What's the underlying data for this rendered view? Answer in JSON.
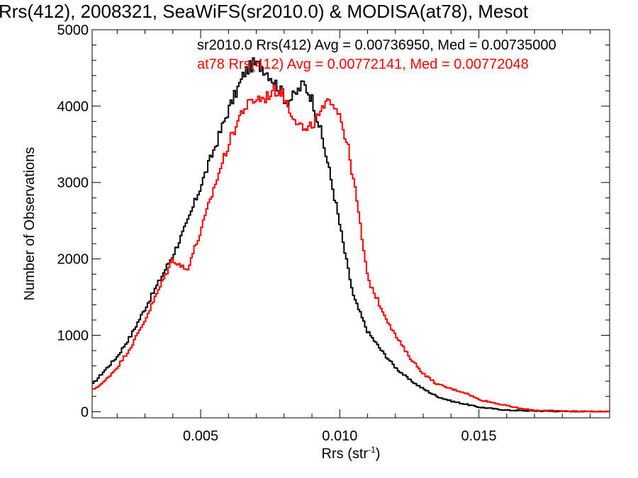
{
  "chart_data": {
    "type": "line",
    "title": "Rrs(412), 2008321, SeaWiFS(sr2010.0) & MODISA(at78), Mesot",
    "xlabel": "Rrs (str",
    "xlabel_sup": "-1",
    "xlabel_close": ")",
    "ylabel": "Number of Observations",
    "xlim": [
      0.0011,
      0.0197
    ],
    "ylim": [
      -80,
      5000
    ],
    "x_ticks": [
      0.005,
      0.01,
      0.015
    ],
    "x_tick_labels": [
      "0.005",
      "0.010",
      "0.015"
    ],
    "y_ticks": [
      0,
      1000,
      2000,
      3000,
      4000,
      5000
    ],
    "y_tick_labels": [
      "0",
      "1000",
      "2000",
      "3000",
      "4000",
      "5000"
    ],
    "grid": false,
    "legend": "top-right",
    "series": [
      {
        "name": "sr2010.0",
        "color": "#000000",
        "annotation": "sr2010.0 Rrs(412) Avg = 0.00736950, Med = 0.00735000",
        "x": [
          0.0011,
          0.0015,
          0.002,
          0.0025,
          0.003,
          0.0035,
          0.004,
          0.0045,
          0.005,
          0.0055,
          0.006,
          0.0063,
          0.0066,
          0.0069,
          0.0072,
          0.0075,
          0.0078,
          0.0081,
          0.0084,
          0.0087,
          0.009,
          0.0093,
          0.0096,
          0.0099,
          0.0102,
          0.0105,
          0.011,
          0.0115,
          0.012,
          0.0125,
          0.013,
          0.0135,
          0.014,
          0.0145,
          0.015,
          0.0155,
          0.016,
          0.017,
          0.018,
          0.0197
        ],
        "values": [
          350,
          520,
          720,
          1000,
          1350,
          1700,
          2050,
          2450,
          2950,
          3450,
          3950,
          4200,
          4450,
          4550,
          4520,
          4400,
          4250,
          4050,
          4150,
          4300,
          4100,
          3700,
          3200,
          2650,
          2050,
          1500,
          1050,
          800,
          580,
          420,
          300,
          200,
          140,
          100,
          60,
          40,
          20,
          10,
          5,
          0
        ]
      },
      {
        "name": "at78",
        "color": "#ff0000",
        "annotation": "at78 Rrs(412) Avg = 0.00772141, Med = 0.00772048",
        "x": [
          0.0011,
          0.0015,
          0.002,
          0.0025,
          0.003,
          0.0035,
          0.004,
          0.0045,
          0.005,
          0.0055,
          0.006,
          0.0065,
          0.007,
          0.0073,
          0.0076,
          0.0079,
          0.0082,
          0.0085,
          0.0088,
          0.0091,
          0.0094,
          0.0097,
          0.01,
          0.0103,
          0.0106,
          0.011,
          0.0115,
          0.012,
          0.0125,
          0.013,
          0.0135,
          0.014,
          0.0145,
          0.015,
          0.0155,
          0.016,
          0.0165,
          0.017,
          0.018,
          0.019,
          0.0197
        ],
        "values": [
          280,
          380,
          580,
          850,
          1200,
          1600,
          2000,
          1850,
          2350,
          2950,
          3500,
          3950,
          4100,
          4100,
          4200,
          4200,
          3950,
          3800,
          3650,
          3800,
          3950,
          4100,
          3900,
          3450,
          2800,
          1750,
          1350,
          1000,
          720,
          500,
          360,
          300,
          250,
          160,
          120,
          80,
          40,
          20,
          8,
          3,
          0
        ]
      }
    ]
  }
}
